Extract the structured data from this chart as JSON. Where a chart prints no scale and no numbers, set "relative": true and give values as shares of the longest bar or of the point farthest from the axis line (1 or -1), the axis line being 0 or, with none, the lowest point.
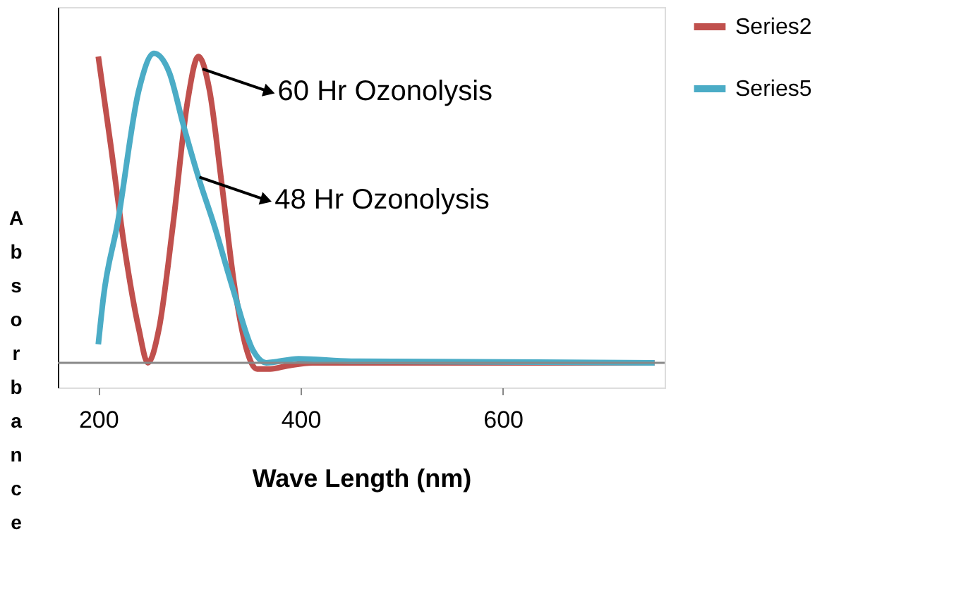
{
  "chart_data": {
    "type": "line",
    "relative": true,
    "xlabel": "Wave Length (nm)",
    "ylabel": "Absorbance",
    "xlim": [
      160,
      760
    ],
    "xticks": [
      200,
      400,
      600
    ],
    "grid": false,
    "legend": "right",
    "marker": "none",
    "line_style": "solid",
    "series": [
      {
        "name": "Series2",
        "color": "#c0504d",
        "x": [
          200,
          212,
          226,
          240,
          249,
          260,
          274,
          288,
          299,
          310,
          322,
          335,
          346,
          357,
          370,
          387,
          412,
          500,
          750
        ],
        "values": [
          0.99,
          0.71,
          0.37,
          0.11,
          0,
          0.11,
          0.45,
          0.84,
          0.99,
          0.88,
          0.58,
          0.24,
          0.05,
          -0.02,
          -0.02,
          -0.01,
          0,
          0,
          0
        ]
      },
      {
        "name": "Series5",
        "color": "#4bacc6",
        "x": [
          200,
          205,
          219,
          240,
          255,
          270,
          284,
          299,
          315,
          333,
          353,
          366,
          398,
          450,
          750
        ],
        "values": [
          0.06,
          0.21,
          0.45,
          0.88,
          1.0,
          0.94,
          0.77,
          0.6,
          0.44,
          0.24,
          0.04,
          0,
          0.013,
          0.005,
          0
        ]
      }
    ],
    "annotations": [
      {
        "text": "60 Hr Ozonolysis",
        "x": 303,
        "y": 0.95
      },
      {
        "text": "48 Hr Ozonolysis",
        "x": 300,
        "y": 0.6
      }
    ]
  }
}
